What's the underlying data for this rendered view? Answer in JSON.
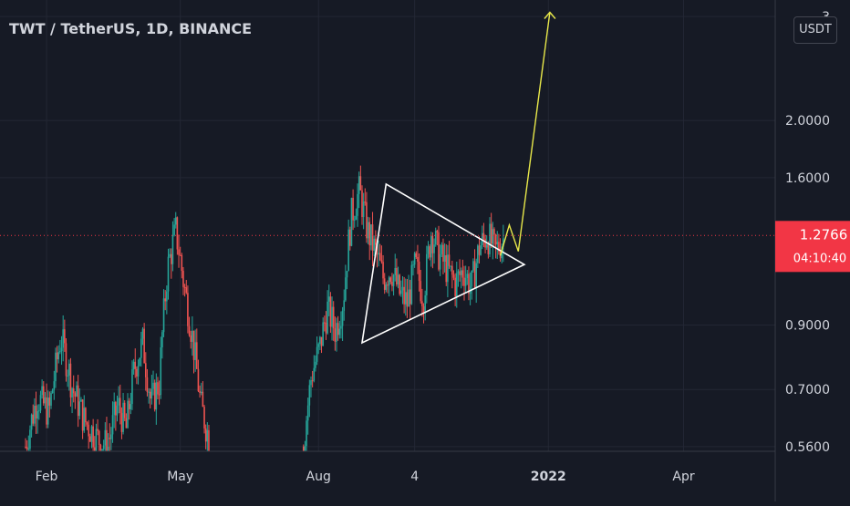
{
  "header": {
    "title": "TWT / TetherUS, 1D, BINANCE",
    "currency_button": "USDT"
  },
  "chart_data": {
    "type": "candlestick",
    "title": "TWT / TetherUS, 1D, BINANCE",
    "y_scale": "log",
    "ylim": [
      0.55,
      3.2
    ],
    "y_ticks": [
      {
        "value": 3.0,
        "label": "3"
      },
      {
        "value": 2.0,
        "label": "2.0000"
      },
      {
        "value": 1.6,
        "label": "1.6000"
      },
      {
        "value": 0.9,
        "label": "0.9000"
      },
      {
        "value": 0.7,
        "label": "0.7000"
      },
      {
        "value": 0.56,
        "label": "0.5600"
      }
    ],
    "x_ticks": [
      {
        "date": "2021-02-01",
        "label": "Feb"
      },
      {
        "date": "2021-05-01",
        "label": "May"
      },
      {
        "date": "2021-08-01",
        "label": "Aug"
      },
      {
        "date": "2021-10-04",
        "label": "4"
      },
      {
        "date": "2022-01-01",
        "label": "2022"
      },
      {
        "date": "2022-04-01",
        "label": "Apr"
      }
    ],
    "xlim": [
      "2021-01-01",
      "2022-06-01"
    ],
    "last_price": {
      "value": 1.2766,
      "label": "1.2766",
      "countdown": "04:10:40",
      "color": "#f23645"
    },
    "colors": {
      "up": "#26a69a",
      "down": "#ef5350",
      "background": "#161a25",
      "grid": "#232734",
      "triangle": "#ffffff",
      "projection": "#e8e84a"
    },
    "segments": [
      {
        "start": "2021-01-18",
        "end": "2021-03-14",
        "anchors": [
          0.56,
          0.68,
          0.64,
          0.86,
          0.7,
          0.62,
          0.58,
          0.56
        ]
      },
      {
        "start": "2021-03-15",
        "end": "2021-05-20",
        "anchors": [
          0.58,
          0.66,
          0.6,
          0.76,
          0.84,
          0.66,
          0.72,
          1.12,
          1.3,
          1.05,
          0.86,
          0.66,
          0.58
        ]
      },
      {
        "start": "2021-07-22",
        "end": "2021-12-02",
        "anchors": [
          0.56,
          0.74,
          0.82,
          0.96,
          0.88,
          1.0,
          1.38,
          1.52,
          1.3,
          1.2,
          1.08,
          1.12,
          1.02,
          0.98,
          1.14,
          1.0,
          1.3,
          1.18,
          1.12,
          1.06,
          1.12,
          1.04,
          1.22,
          1.28,
          1.2,
          1.26
        ]
      }
    ],
    "triangle": [
      {
        "date": "2021-09-15",
        "price": 1.56
      },
      {
        "date": "2021-12-16",
        "price": 1.14
      },
      {
        "date": "2021-08-30",
        "price": 0.84
      }
    ],
    "projection": [
      {
        "date": "2021-11-30",
        "price": 1.18
      },
      {
        "date": "2021-12-06",
        "price": 1.33
      },
      {
        "date": "2021-12-12",
        "price": 1.2
      },
      {
        "date": "2022-01-02",
        "price": 3.05
      }
    ]
  }
}
